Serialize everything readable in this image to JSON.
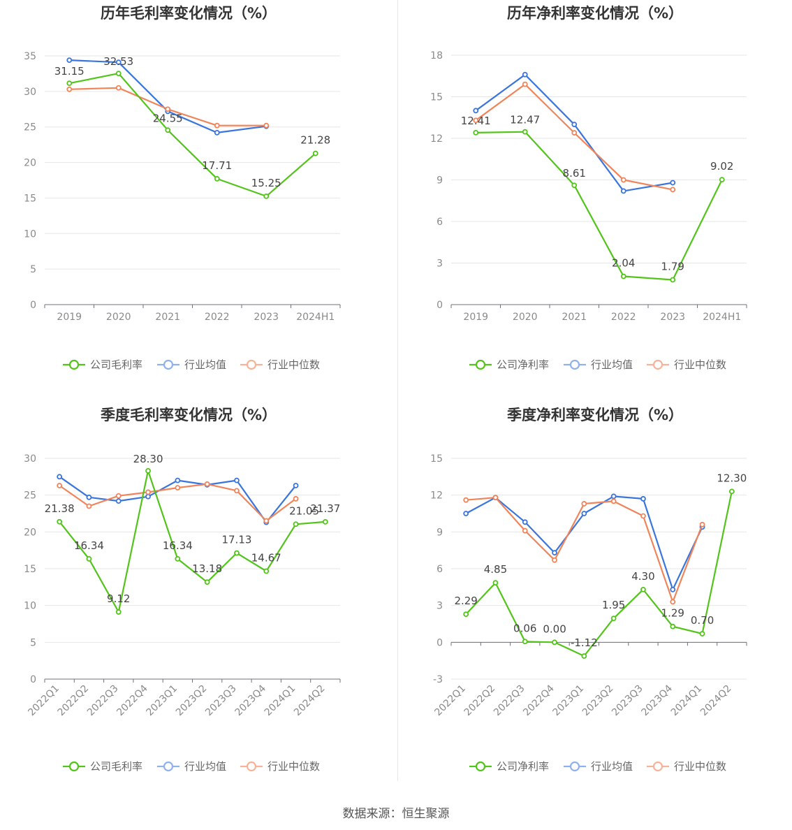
{
  "source": "数据来源：恒生聚源",
  "charts": [
    {
      "chart_data": {
        "type": "line",
        "title": "历年毛利率变化情况（%）",
        "categories": [
          "2019",
          "2020",
          "2021",
          "2022",
          "2023",
          "2024H1"
        ],
        "ylim": [
          0,
          35
        ],
        "yticks": [
          0,
          5,
          10,
          15,
          20,
          25,
          30,
          35
        ],
        "legend_position": "bottom",
        "grid": true,
        "series": [
          {
            "name": "公司毛利率",
            "color": "#52c41a",
            "values": [
              31.15,
              32.53,
              24.55,
              17.71,
              15.25,
              21.28
            ],
            "labels": [
              "31.15",
              "32.53",
              "24.55",
              "17.71",
              "15.25",
              "21.28"
            ]
          },
          {
            "name": "行业均值",
            "color": "#3a75dc",
            "values": [
              34.4,
              34.1,
              27.2,
              24.2,
              25.1,
              null
            ]
          },
          {
            "name": "行业中位数",
            "color": "#f0845a",
            "values": [
              30.3,
              30.5,
              27.5,
              25.2,
              25.2,
              null
            ]
          }
        ]
      }
    },
    {
      "chart_data": {
        "type": "line",
        "title": "历年净利率变化情况（%）",
        "categories": [
          "2019",
          "2020",
          "2021",
          "2022",
          "2023",
          "2024H1"
        ],
        "ylim": [
          0,
          18
        ],
        "yticks": [
          0,
          3,
          6,
          9,
          12,
          15,
          18
        ],
        "legend_position": "bottom",
        "grid": true,
        "series": [
          {
            "name": "公司净利率",
            "color": "#52c41a",
            "values": [
              12.41,
              12.47,
              8.61,
              2.04,
              1.79,
              9.02
            ],
            "labels": [
              "12.41",
              "12.47",
              "8.61",
              "2.04",
              "1.79",
              "9.02"
            ]
          },
          {
            "name": "行业均值",
            "color": "#3a75dc",
            "values": [
              14.0,
              16.6,
              13.0,
              8.2,
              8.8,
              null
            ]
          },
          {
            "name": "行业中位数",
            "color": "#f0845a",
            "values": [
              13.3,
              15.9,
              12.4,
              9.0,
              8.3,
              null
            ]
          }
        ]
      }
    },
    {
      "chart_data": {
        "type": "line",
        "title": "季度毛利率变化情况（%）",
        "categories": [
          "2022Q1",
          "2022Q2",
          "2022Q3",
          "2022Q4",
          "2023Q1",
          "2023Q2",
          "2023Q3",
          "2023Q4",
          "2024Q1",
          "2024Q2"
        ],
        "ylim": [
          0,
          30
        ],
        "yticks": [
          0,
          5,
          10,
          15,
          20,
          25,
          30
        ],
        "legend_position": "bottom",
        "grid": true,
        "series": [
          {
            "name": "公司毛利率",
            "color": "#52c41a",
            "values": [
              21.38,
              16.34,
              9.12,
              28.3,
              16.34,
              13.18,
              17.13,
              14.67,
              21.05,
              21.37
            ],
            "labels": [
              "21.38",
              "16.34",
              "9.12",
              "28.30",
              "16.34",
              "13.18",
              "17.13",
              "14.67",
              "21.05",
              "21.37"
            ]
          },
          {
            "name": "行业均值",
            "color": "#3a75dc",
            "values": [
              27.5,
              24.7,
              24.2,
              24.8,
              27.0,
              26.4,
              27.0,
              21.3,
              26.3,
              null
            ]
          },
          {
            "name": "行业中位数",
            "color": "#f0845a",
            "values": [
              26.3,
              23.5,
              24.9,
              25.4,
              26.0,
              26.5,
              25.6,
              21.5,
              24.5,
              null
            ]
          }
        ]
      }
    },
    {
      "chart_data": {
        "type": "line",
        "title": "季度净利率变化情况（%）",
        "categories": [
          "2022Q1",
          "2022Q2",
          "2022Q3",
          "2022Q4",
          "2023Q1",
          "2023Q2",
          "2023Q3",
          "2023Q4",
          "2024Q1",
          "2024Q2"
        ],
        "ylim": [
          -3,
          15
        ],
        "yticks": [
          -3,
          0,
          3,
          6,
          9,
          12,
          15
        ],
        "legend_position": "bottom",
        "grid": true,
        "series": [
          {
            "name": "公司净利率",
            "color": "#52c41a",
            "values": [
              2.29,
              4.85,
              0.06,
              0.0,
              -1.12,
              1.95,
              4.3,
              1.29,
              0.7,
              12.3
            ],
            "labels": [
              "2.29",
              "4.85",
              "0.06",
              "0.00",
              "-1.12",
              "1.95",
              "4.30",
              "1.29",
              "0.70",
              "12.30"
            ]
          },
          {
            "name": "行业均值",
            "color": "#3a75dc",
            "values": [
              10.5,
              11.8,
              9.8,
              7.3,
              10.5,
              11.9,
              11.7,
              4.3,
              9.4,
              null
            ]
          },
          {
            "name": "行业中位数",
            "color": "#f0845a",
            "values": [
              11.6,
              11.8,
              9.1,
              6.7,
              11.3,
              11.5,
              10.3,
              3.3,
              9.6,
              null
            ]
          }
        ]
      }
    }
  ]
}
